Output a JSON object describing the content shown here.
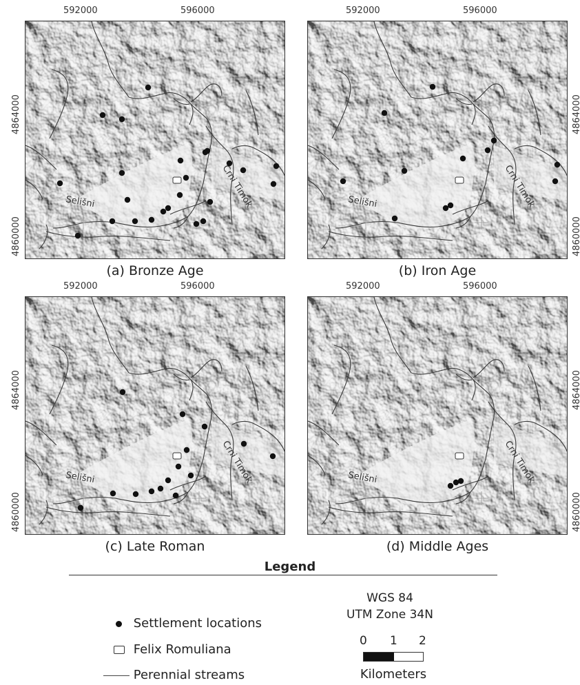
{
  "panels": [
    {
      "caption": "(a) Bronze Age",
      "settlements": [
        [
          148,
          166
        ],
        [
          176,
          172
        ],
        [
          214,
          126
        ],
        [
          261,
          232
        ],
        [
          297,
          220
        ],
        [
          300,
          218
        ],
        [
          332,
          236
        ],
        [
          352,
          246
        ],
        [
          400,
          240
        ],
        [
          396,
          266
        ],
        [
          86,
          265
        ],
        [
          176,
          250
        ],
        [
          269,
          257
        ],
        [
          184,
          289
        ],
        [
          304,
          292
        ],
        [
          294,
          320
        ],
        [
          284,
          324
        ],
        [
          243,
          301
        ],
        [
          236,
          306
        ],
        [
          260,
          282
        ],
        [
          219,
          318
        ],
        [
          195,
          320
        ],
        [
          162,
          320
        ],
        [
          112,
          341
        ]
      ]
    },
    {
      "caption": "(b) Iron Age",
      "settlements": [
        [
          627,
          125
        ],
        [
          557,
          163
        ],
        [
          716,
          203
        ],
        [
          707,
          217
        ],
        [
          671,
          229
        ],
        [
          808,
          238
        ],
        [
          805,
          262
        ],
        [
          586,
          247
        ],
        [
          497,
          262
        ],
        [
          653,
          297
        ],
        [
          646,
          301
        ],
        [
          572,
          316
        ]
      ]
    },
    {
      "caption": "(c) Late Roman",
      "settlements": [
        [
          177,
          568
        ],
        [
          264,
          600
        ],
        [
          296,
          618
        ],
        [
          270,
          652
        ],
        [
          353,
          643
        ],
        [
          395,
          661
        ],
        [
          258,
          676
        ],
        [
          276,
          689
        ],
        [
          243,
          696
        ],
        [
          232,
          708
        ],
        [
          254,
          718
        ],
        [
          219,
          712
        ],
        [
          196,
          716
        ],
        [
          163,
          715
        ],
        [
          116,
          736
        ]
      ]
    },
    {
      "caption": "(d) Middle Ages",
      "settlements": [
        [
          653,
          704
        ],
        [
          661,
          699
        ],
        [
          668,
          697
        ]
      ]
    }
  ],
  "axis_labels": {
    "x": [
      "592000",
      "596000"
    ],
    "y": [
      "4864000",
      "4860000"
    ]
  },
  "place_labels": {
    "stream_west": "Selišni",
    "stream_east": "Crni Timok"
  },
  "legend": {
    "title": "Legend",
    "settlements": "Settlement locations",
    "site": "Felix Romuliana",
    "streams": "Perennial streams"
  },
  "projection": {
    "datum": "WGS 84",
    "zone": "UTM Zone 34N"
  },
  "scale": {
    "ticks": [
      "0",
      "1",
      "2"
    ],
    "unit": "Kilometers"
  },
  "colors": {
    "hill_light": "#f4f4f4",
    "hill_mid": "#d2d2d2",
    "hill_dark": "#a8a8a8",
    "stream": "#3a3a3a"
  }
}
